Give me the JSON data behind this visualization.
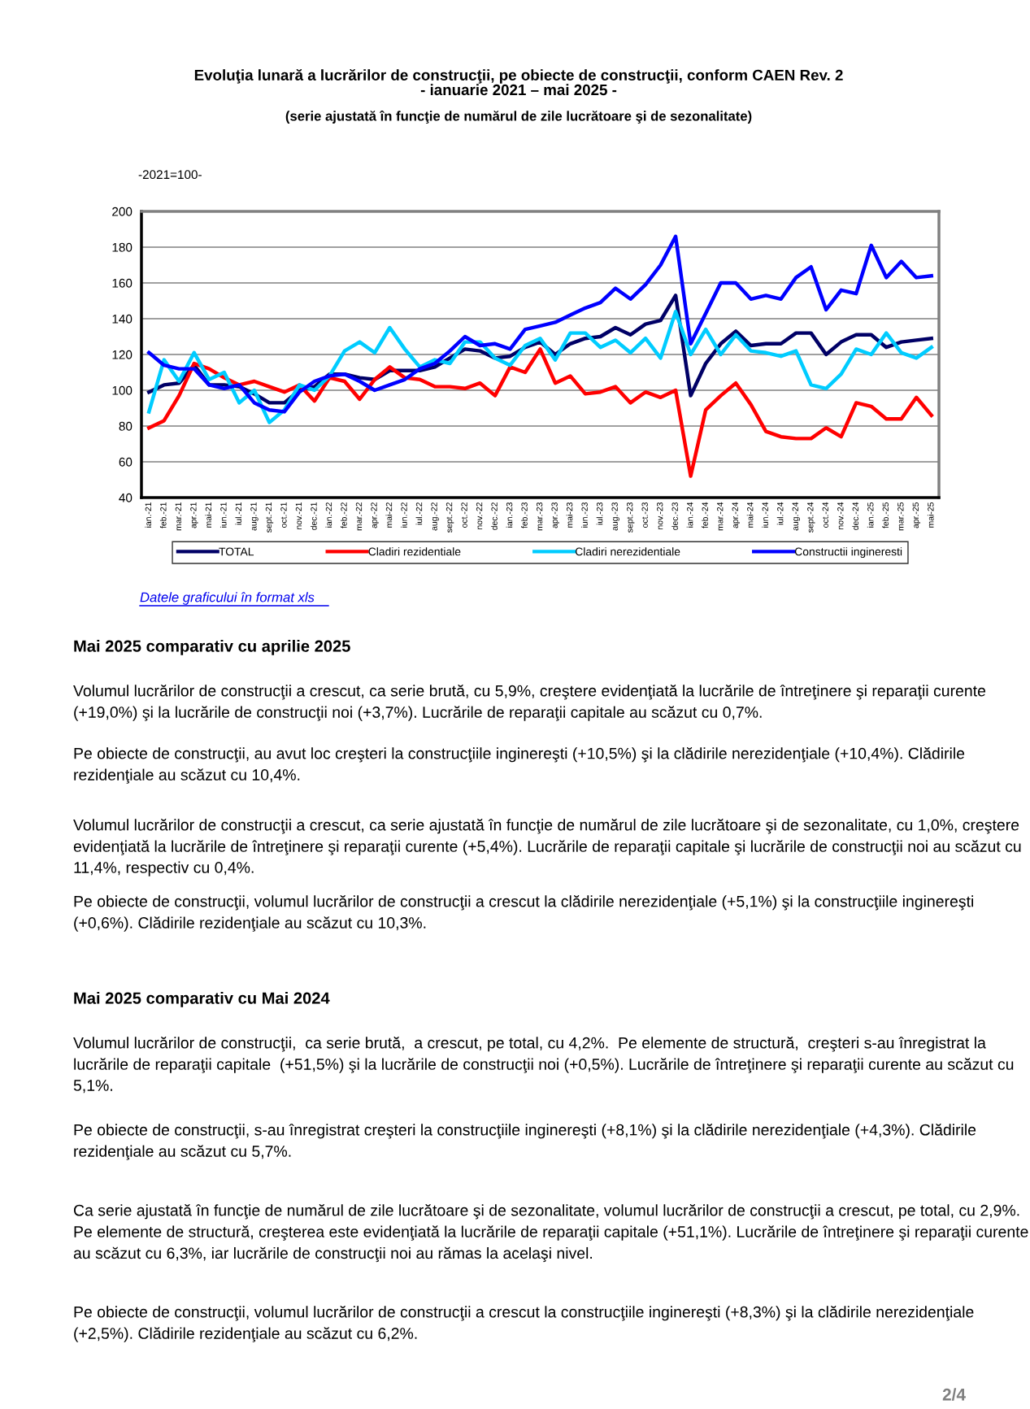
{
  "chart_data": {
    "type": "line",
    "title": "Evoluţia lunară a lucrărilor de construcţii, pe obiecte de construcţii, conform CAEN Rev. 2\n- ianuarie 2021 – mai 2025 -",
    "subtitle": "(serie ajustată în funcţie de numărul de zile lucrătoare şi de sezonalitate)",
    "categories": [
      "ian.-21",
      "feb.-21",
      "mar.-21",
      "apr.-21",
      "mai-21",
      "iun.-21",
      "iul.-21",
      "aug.-21",
      "sept.-21",
      "oct.-21",
      "nov.-21",
      "dec.-21",
      "ian.-22",
      "feb.-22",
      "mar.-22",
      "apr.-22",
      "mai-22",
      "iun.-22",
      "iul.-22",
      "aug.-22",
      "sept.-22",
      "oct.-22",
      "nov.-22",
      "dec.-22",
      "ian.-23",
      "feb.-23",
      "mar.-23",
      "apr.-23",
      "mai-23",
      "iun.-23",
      "iul.-23",
      "aug.-23",
      "sept.-23",
      "oct.-23",
      "nov.-23",
      "dec.-23",
      "ian.-24",
      "feb.-24",
      "mar.-24",
      "apr.-24",
      "mai-24",
      "iun.-24",
      "iul.-24",
      "aug.-24",
      "sept.-24",
      "oct.-24",
      "nov.-24",
      "dec.-24",
      "ian.-25",
      "feb.-25",
      "mar.-25",
      "apr.-25",
      "mai-25"
    ],
    "series": [
      {
        "name": "TOTAL",
        "color": "#000066",
        "values": [
          99,
          103,
          104,
          114,
          103,
          103,
          102,
          98,
          93,
          93,
          100,
          102,
          109,
          109,
          107,
          106,
          111,
          111,
          111,
          113,
          118,
          123,
          122,
          118,
          119,
          124,
          127,
          120,
          126,
          129,
          130,
          135,
          131,
          137,
          139,
          153,
          97,
          115,
          126,
          133,
          125,
          126,
          126,
          132,
          132,
          120,
          127,
          131,
          131,
          124,
          127,
          128,
          129
        ]
      },
      {
        "name": "Cladiri rezidentiale",
        "color": "#ff0000",
        "values": [
          79,
          83,
          97,
          115,
          112,
          107,
          103,
          105,
          102,
          99,
          103,
          94,
          107,
          105,
          95,
          106,
          113,
          107,
          106,
          102,
          102,
          101,
          104,
          97,
          113,
          110,
          123,
          104,
          108,
          98,
          99,
          102,
          93,
          99,
          96,
          100,
          52,
          89,
          97,
          104,
          92,
          77,
          74,
          73,
          73,
          79,
          74,
          93,
          91,
          84,
          84,
          96,
          86
        ]
      },
      {
        "name": "Cladiri nerezidentiale",
        "color": "#00ccff",
        "values": [
          88,
          117,
          105,
          121,
          106,
          110,
          93,
          100,
          82,
          89,
          103,
          100,
          108,
          122,
          127,
          121,
          135,
          123,
          113,
          117,
          115,
          127,
          127,
          118,
          114,
          125,
          129,
          117,
          132,
          132,
          124,
          128,
          121,
          129,
          118,
          144,
          120,
          134,
          120,
          131,
          122,
          121,
          119,
          122,
          103,
          101,
          109,
          123,
          120,
          132,
          121,
          118,
          124
        ]
      },
      {
        "name": "Constructii ingineresti",
        "color": "#0000ff",
        "values": [
          121,
          114,
          112,
          112,
          103,
          101,
          103,
          93,
          89,
          88,
          99,
          105,
          108,
          109,
          105,
          100,
          103,
          106,
          112,
          115,
          122,
          130,
          125,
          126,
          123,
          134,
          136,
          138,
          142,
          146,
          149,
          157,
          151,
          159,
          170,
          186,
          126,
          143,
          160,
          160,
          151,
          153,
          151,
          163,
          169,
          145,
          156,
          154,
          181,
          163,
          172,
          163,
          164
        ]
      }
    ],
    "ylim": [
      40,
      200
    ],
    "yticks": [
      40,
      60,
      80,
      100,
      120,
      140,
      160,
      180,
      200
    ],
    "grid": "y",
    "legend": "bottom",
    "marker": "none",
    "line_style": "solid",
    "annotations": [
      "-2021=100-",
      "Datele graficului în format xls",
      "Mai 2025 comparativ cu aprilie 2025",
      "Volumul lucrărilor de construcţii a crescut, ca serie brută, cu 5,9%, creştere evidenţiată la lucrările de întreţinere şi reparaţii curente (+19,0%) şi la lucrările de construcţii noi (+3,7%). Lucrările de reparaţii capitale au scăzut cu 0,7%.",
      "Pe obiecte de construcţii, au avut loc creşteri la construcţiile inginereşti (+10,5%) şi la clădirile nerezidenţiale (+10,4%). Clădirile rezidenţiale au scăzut cu 10,4%.",
      "Volumul lucrărilor de construcţii a crescut, ca serie ajustată în funcţie de numărul de zile lucrătoare şi de sezonalitate, cu 1,0%, creştere evidenţiată la lucrările de întreţinere şi reparaţii curente (+5,4%). Lucrările de reparaţii capitale şi lucrările de construcţii noi au scăzut cu 11,4%, respectiv cu 0,4%.",
      "Pe obiecte de construcţii, volumul lucrărilor de construcţii a crescut la clădirile nerezidenţiale (+5,1%) şi la construcţiile inginereşti (+0,6%). Clădirile rezidenţiale au scăzut cu 10,3%.",
      "Mai 2025 comparativ cu Mai 2024",
      "Volumul lucrărilor de construcţii,  ca serie brută,  a crescut, pe total, cu 4,2%.  Pe elemente de structură,  creşteri s-au înregistrat la lucrările de reparaţii capitale  (+51,5%) şi la lucrările de construcţii noi (+0,5%). Lucrările de întreţinere şi reparaţii curente au scăzut cu 5,1%.",
      "Pe obiecte de construcţii, s-au înregistrat creşteri la construcţiile inginereşti (+8,1%) şi la clădirile nerezidenţiale (+4,3%). Clădirile rezidenţiale au scăzut cu 5,7%.",
      "Ca serie ajustată în funcţie de numărul de zile lucrătoare şi de sezonalitate, volumul lucrărilor de construcţii a crescut, pe total, cu 2,9%. Pe elemente de structură, creşterea este evidenţiată la lucrările de reparaţii capitale (+51,1%). Lucrările de întreţinere şi reparaţii curente au scăzut cu 6,3%, iar lucrările de construcţii noi au rămas la acelaşi nivel.",
      "Pe obiecte de construcţii, volumul lucrărilor de construcţii a crescut la construcţiile inginereşti (+8,3%) şi la clădirile nerezidenţiale (+2,5%). Clădirile rezidenţiale au scăzut cu 6,2%.",
      "2/4"
    ]
  }
}
